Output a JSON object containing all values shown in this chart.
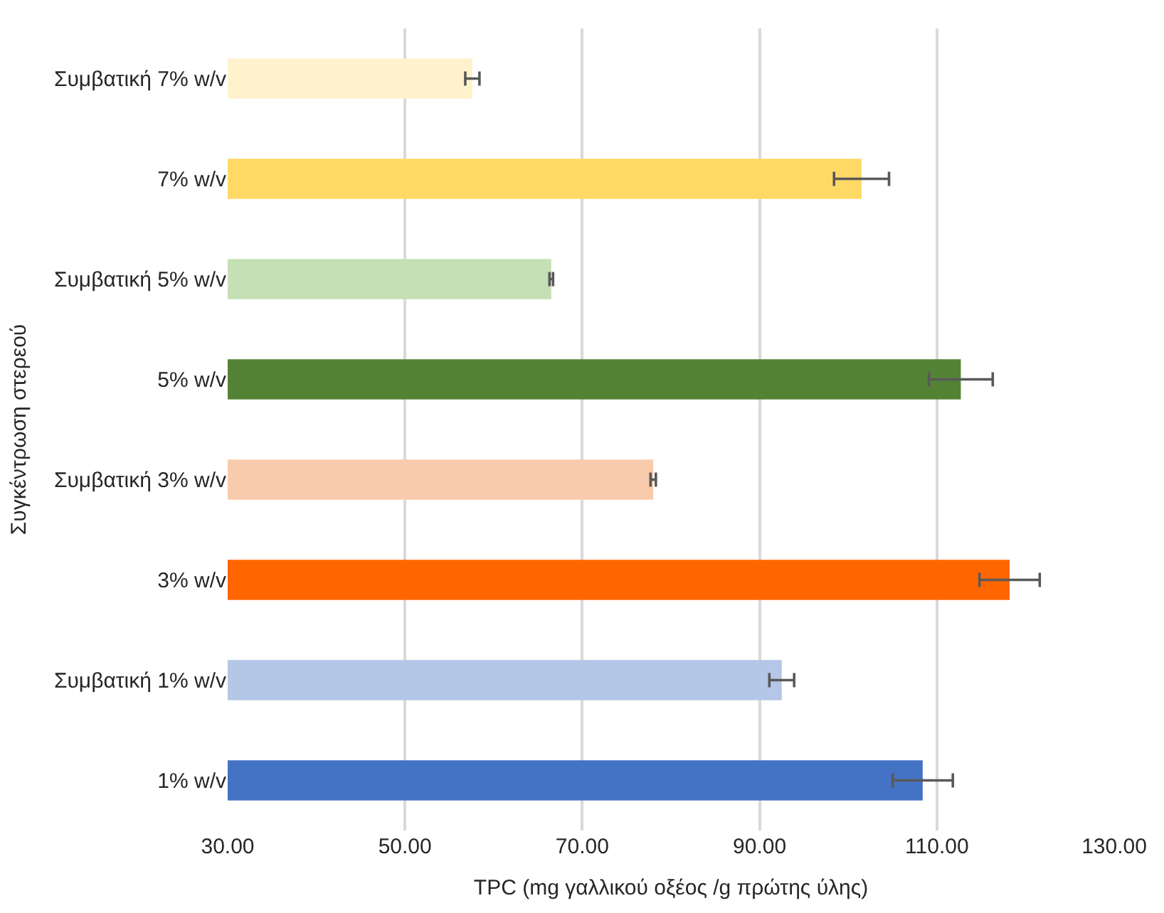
{
  "chart_data": {
    "type": "bar",
    "orientation": "horizontal",
    "xlabel": "TPC (mg γαλλικού οξέος /g πρώτης ύλης)",
    "ylabel": "Συγκέντρωση στερεού",
    "categories": [
      "Συμβατική 7% w/v",
      "7% w/v",
      "Συμβατική 5% w/v",
      "5% w/v",
      "Συμβατική 3% w/v",
      "3% w/v",
      "Συμβατική 1% w/v",
      "1% w/v"
    ],
    "values": [
      57.6,
      101.5,
      66.5,
      112.7,
      78.0,
      118.2,
      92.5,
      108.4
    ],
    "errors": [
      0.8,
      3.1,
      0.2,
      3.6,
      0.3,
      3.4,
      1.4,
      3.4
    ],
    "colors": [
      "#fff2cc",
      "#ffd966",
      "#c5e0b4",
      "#548235",
      "#f8cbad",
      "#ff6600",
      "#b4c7e7",
      "#4472c4"
    ],
    "xlim": [
      30,
      130
    ],
    "xticks": [
      {
        "value": 30,
        "label": "30.00"
      },
      {
        "value": 50,
        "label": "50.00"
      },
      {
        "value": 70,
        "label": "70.00"
      },
      {
        "value": 90,
        "label": "90.00"
      },
      {
        "value": 110,
        "label": "110.00"
      },
      {
        "value": 130,
        "label": "130.00"
      }
    ],
    "grid": "x",
    "legend": false
  }
}
